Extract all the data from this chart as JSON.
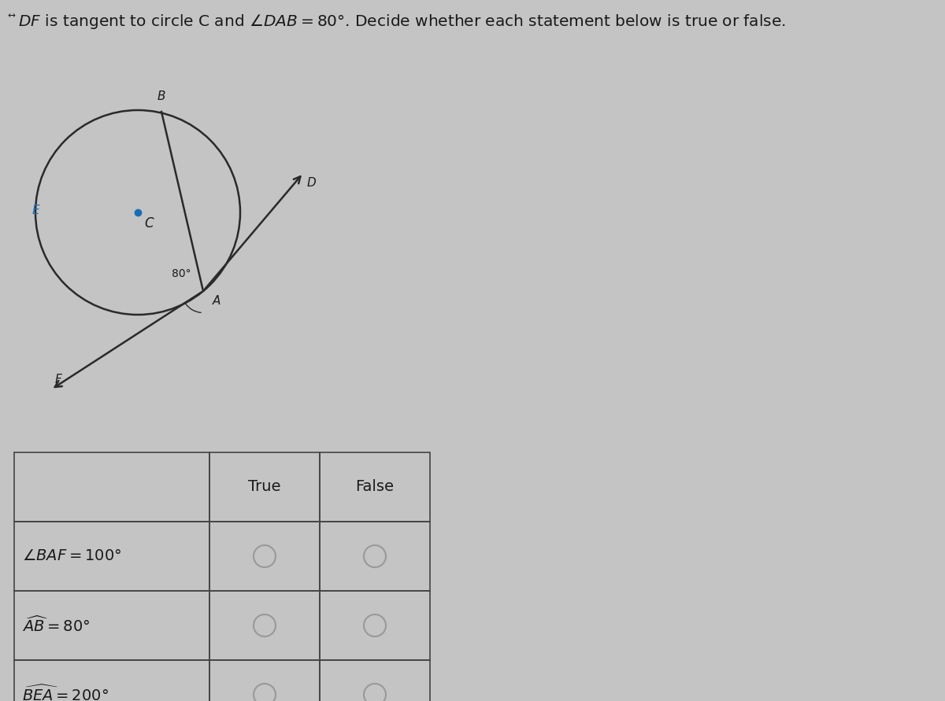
{
  "bg_color": "#c4c4c4",
  "title_fontsize": 15,
  "line_color": "#2a2a2a",
  "circle_color": "#2a2a2a",
  "text_color": "#1a1a1a",
  "radio_color": "#999999",
  "table_line_color": "#444444",
  "center_dot_color": "#1a6cb5",
  "E_label_color": "#1a6cb5",
  "headers": [
    "",
    "True",
    "False"
  ],
  "rows": [
    {
      "label": "$\\angle BAF = 100°$"
    },
    {
      "label": "$\\widehat{AB} = 80°$"
    },
    {
      "label": "$\\widehat{BEA} = 200°$"
    }
  ]
}
